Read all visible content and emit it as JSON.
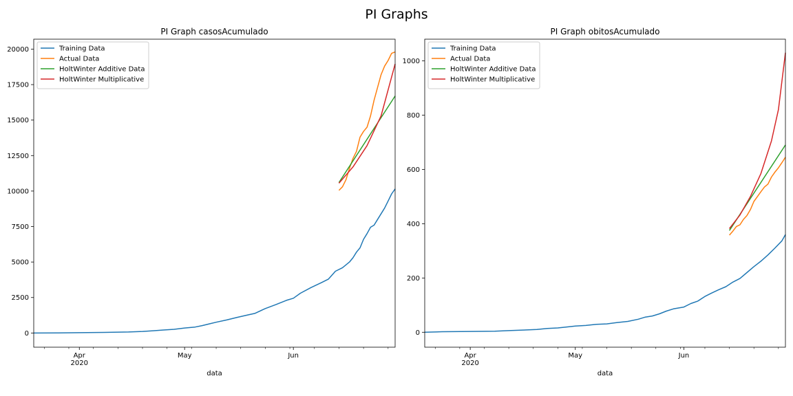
{
  "figure": {
    "suptitle": "PI Graphs"
  },
  "colors": {
    "training": "#1f77b4",
    "actual": "#ff7f0e",
    "additive": "#2ca02c",
    "multiplicative": "#d62728",
    "axis": "#000000",
    "legend_border": "#cccccc"
  },
  "chart_data": [
    {
      "type": "line",
      "title": "PI Graph casosAcumulado",
      "xlabel": "data",
      "ylabel": "",
      "xlim": [
        "2020-03-19",
        "2020-06-30"
      ],
      "ylim": [
        -1000,
        20700
      ],
      "grid": false,
      "legend_position": "upper left",
      "yticks": [
        0,
        2500,
        5000,
        7500,
        10000,
        12500,
        15000,
        17500,
        20000
      ],
      "ytick_labels": [
        "0",
        "2500",
        "5000",
        "7500",
        "10000",
        "12500",
        "15000",
        "17500",
        "20000"
      ],
      "xticks_major": [
        {
          "date": "2020-04-01",
          "label": "Apr",
          "sublabel": "2020"
        },
        {
          "date": "2020-05-01",
          "label": "May",
          "sublabel": ""
        },
        {
          "date": "2020-06-01",
          "label": "Jun",
          "sublabel": ""
        }
      ],
      "xticks_minor": [
        "2020-03-22",
        "2020-03-29",
        "2020-04-05",
        "2020-04-12",
        "2020-04-19",
        "2020-04-26",
        "2020-05-03",
        "2020-05-10",
        "2020-05-17",
        "2020-05-24",
        "2020-05-31",
        "2020-06-07",
        "2020-06-14",
        "2020-06-21",
        "2020-06-28"
      ],
      "series": [
        {
          "name": "Training Data",
          "color_key": "training",
          "points": [
            [
              "2020-03-19",
              0
            ],
            [
              "2020-03-26",
              5
            ],
            [
              "2020-04-01",
              20
            ],
            [
              "2020-04-08",
              40
            ],
            [
              "2020-04-15",
              70
            ],
            [
              "2020-04-19",
              110
            ],
            [
              "2020-04-22",
              160
            ],
            [
              "2020-04-25",
              210
            ],
            [
              "2020-04-28",
              260
            ],
            [
              "2020-05-01",
              350
            ],
            [
              "2020-05-04",
              420
            ],
            [
              "2020-05-06",
              520
            ],
            [
              "2020-05-08",
              640
            ],
            [
              "2020-05-10",
              760
            ],
            [
              "2020-05-13",
              920
            ],
            [
              "2020-05-16",
              1100
            ],
            [
              "2020-05-19",
              1270
            ],
            [
              "2020-05-21",
              1380
            ],
            [
              "2020-05-24",
              1720
            ],
            [
              "2020-05-27",
              2000
            ],
            [
              "2020-05-30",
              2300
            ],
            [
              "2020-06-01",
              2450
            ],
            [
              "2020-06-03",
              2800
            ],
            [
              "2020-06-06",
              3200
            ],
            [
              "2020-06-09",
              3550
            ],
            [
              "2020-06-11",
              3800
            ],
            [
              "2020-06-13",
              4350
            ],
            [
              "2020-06-15",
              4600
            ],
            [
              "2020-06-17",
              5000
            ],
            [
              "2020-06-18",
              5300
            ],
            [
              "2020-06-19",
              5700
            ],
            [
              "2020-06-20",
              6000
            ],
            [
              "2020-06-21",
              6600
            ],
            [
              "2020-06-22",
              7000
            ],
            [
              "2020-06-23",
              7450
            ],
            [
              "2020-06-24",
              7600
            ],
            [
              "2020-06-25",
              8000
            ],
            [
              "2020-06-27",
              8800
            ],
            [
              "2020-06-28",
              9300
            ],
            [
              "2020-06-29",
              9800
            ],
            [
              "2020-06-30",
              10150
            ]
          ]
        },
        {
          "name": "Actual Data",
          "color_key": "actual",
          "points": [
            [
              "2020-06-14",
              10050
            ],
            [
              "2020-06-15",
              10300
            ],
            [
              "2020-06-16",
              10800
            ],
            [
              "2020-06-17",
              11600
            ],
            [
              "2020-06-18",
              12300
            ],
            [
              "2020-06-19",
              12800
            ],
            [
              "2020-06-20",
              13800
            ],
            [
              "2020-06-21",
              14200
            ],
            [
              "2020-06-22",
              14500
            ],
            [
              "2020-06-23",
              15300
            ],
            [
              "2020-06-24",
              16400
            ],
            [
              "2020-06-25",
              17300
            ],
            [
              "2020-06-26",
              18200
            ],
            [
              "2020-06-27",
              18800
            ],
            [
              "2020-06-28",
              19200
            ],
            [
              "2020-06-29",
              19700
            ],
            [
              "2020-06-30",
              19800
            ]
          ]
        },
        {
          "name": "HoltWinter Additive Data",
          "color_key": "additive",
          "points": [
            [
              "2020-06-14",
              10600
            ],
            [
              "2020-06-30",
              16700
            ]
          ]
        },
        {
          "name": "HoltWinter Multiplicative",
          "color_key": "multiplicative",
          "points": [
            [
              "2020-06-14",
              10550
            ],
            [
              "2020-06-18",
              11700
            ],
            [
              "2020-06-22",
              13200
            ],
            [
              "2020-06-26",
              15300
            ],
            [
              "2020-06-30",
              18950
            ]
          ]
        }
      ]
    },
    {
      "type": "line",
      "title": "PI Graph obitosAcumulado",
      "xlabel": "data",
      "ylabel": "",
      "xlim": [
        "2020-03-19",
        "2020-06-30"
      ],
      "ylim": [
        -55,
        1080
      ],
      "grid": false,
      "legend_position": "upper left",
      "yticks": [
        0,
        200,
        400,
        600,
        800,
        1000
      ],
      "ytick_labels": [
        "0",
        "200",
        "400",
        "600",
        "800",
        "1000"
      ],
      "xticks_major": [
        {
          "date": "2020-04-01",
          "label": "Apr",
          "sublabel": "2020"
        },
        {
          "date": "2020-05-01",
          "label": "May",
          "sublabel": ""
        },
        {
          "date": "2020-06-01",
          "label": "Jun",
          "sublabel": ""
        }
      ],
      "xticks_minor": [
        "2020-03-22",
        "2020-03-29",
        "2020-04-05",
        "2020-04-12",
        "2020-04-19",
        "2020-04-26",
        "2020-05-03",
        "2020-05-10",
        "2020-05-17",
        "2020-05-24",
        "2020-05-31",
        "2020-06-07",
        "2020-06-14",
        "2020-06-21",
        "2020-06-28"
      ],
      "series": [
        {
          "name": "Training Data",
          "color_key": "training",
          "points": [
            [
              "2020-03-19",
              0
            ],
            [
              "2020-03-24",
              2
            ],
            [
              "2020-04-01",
              3
            ],
            [
              "2020-04-08",
              4
            ],
            [
              "2020-04-12",
              6
            ],
            [
              "2020-04-16",
              8
            ],
            [
              "2020-04-20",
              10
            ],
            [
              "2020-04-23",
              14
            ],
            [
              "2020-04-26",
              16
            ],
            [
              "2020-04-29",
              20
            ],
            [
              "2020-05-01",
              23
            ],
            [
              "2020-05-04",
              25
            ],
            [
              "2020-05-07",
              29
            ],
            [
              "2020-05-10",
              31
            ],
            [
              "2020-05-13",
              36
            ],
            [
              "2020-05-16",
              40
            ],
            [
              "2020-05-19",
              48
            ],
            [
              "2020-05-21",
              56
            ],
            [
              "2020-05-23",
              60
            ],
            [
              "2020-05-25",
              68
            ],
            [
              "2020-05-27",
              78
            ],
            [
              "2020-05-29",
              86
            ],
            [
              "2020-06-01",
              93
            ],
            [
              "2020-06-03",
              106
            ],
            [
              "2020-06-05",
              115
            ],
            [
              "2020-06-07",
              132
            ],
            [
              "2020-06-09",
              145
            ],
            [
              "2020-06-11",
              157
            ],
            [
              "2020-06-13",
              168
            ],
            [
              "2020-06-15",
              185
            ],
            [
              "2020-06-17",
              198
            ],
            [
              "2020-06-19",
              220
            ],
            [
              "2020-06-21",
              242
            ],
            [
              "2020-06-23",
              262
            ],
            [
              "2020-06-25",
              285
            ],
            [
              "2020-06-27",
              310
            ],
            [
              "2020-06-29",
              337
            ],
            [
              "2020-06-30",
              360
            ]
          ]
        },
        {
          "name": "Actual Data",
          "color_key": "actual",
          "points": [
            [
              "2020-06-14",
              358
            ],
            [
              "2020-06-15",
              373
            ],
            [
              "2020-06-16",
              390
            ],
            [
              "2020-06-17",
              396
            ],
            [
              "2020-06-18",
              416
            ],
            [
              "2020-06-19",
              430
            ],
            [
              "2020-06-20",
              452
            ],
            [
              "2020-06-21",
              482
            ],
            [
              "2020-06-22",
              500
            ],
            [
              "2020-06-23",
              518
            ],
            [
              "2020-06-24",
              535
            ],
            [
              "2020-06-25",
              546
            ],
            [
              "2020-06-26",
              572
            ],
            [
              "2020-06-27",
              590
            ],
            [
              "2020-06-28",
              606
            ],
            [
              "2020-06-29",
              625
            ],
            [
              "2020-06-30",
              645
            ]
          ]
        },
        {
          "name": "HoltWinter Additive Data",
          "color_key": "additive",
          "points": [
            [
              "2020-06-14",
              375
            ],
            [
              "2020-06-30",
              690
            ]
          ]
        },
        {
          "name": "HoltWinter Multiplicative",
          "color_key": "multiplicative",
          "points": [
            [
              "2020-06-14",
              382
            ],
            [
              "2020-06-17",
              432
            ],
            [
              "2020-06-20",
              500
            ],
            [
              "2020-06-23",
              585
            ],
            [
              "2020-06-26",
              705
            ],
            [
              "2020-06-28",
              820
            ],
            [
              "2020-06-30",
              1030
            ]
          ]
        }
      ]
    }
  ]
}
